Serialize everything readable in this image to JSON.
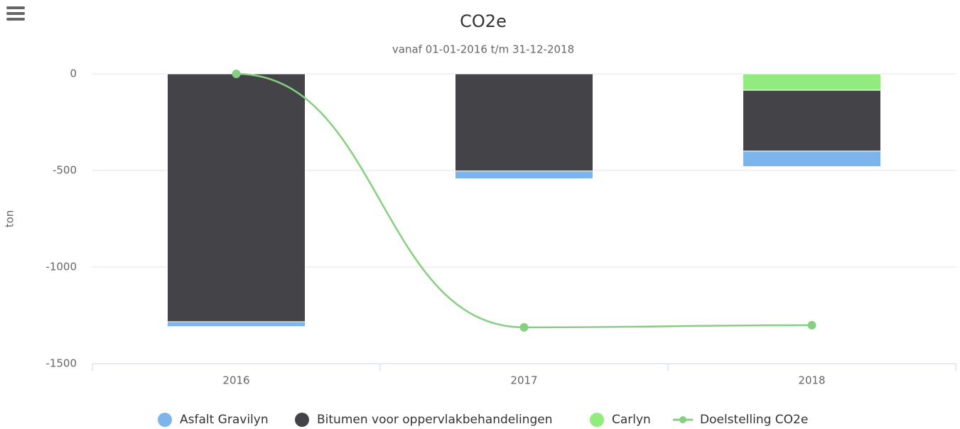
{
  "chart_data": {
    "type": "bar",
    "stacked": true,
    "title": "CO2e",
    "subtitle": "vanaf 01-01-2016 t/m 31-12-2018",
    "y_label": "ton",
    "categories": [
      "2016",
      "2017",
      "2018"
    ],
    "series": [
      {
        "name": "Asfalt Gravilyn",
        "color": "#7cb5ec",
        "values": [
          -25,
          -40,
          -80
        ]
      },
      {
        "name": "Bitumen voor oppervlakbehandelingen",
        "color": "#434348",
        "values": [
          -1283,
          -503,
          -315
        ]
      },
      {
        "name": "Carlyn",
        "color": "#90ed7d",
        "values": [
          null,
          null,
          -85
        ]
      },
      {
        "name": "Doelstelling CO2e",
        "color": "#86cf80",
        "type": "line",
        "values": [
          0,
          -1312,
          -1301
        ]
      }
    ],
    "ylim": [
      -1500,
      0
    ],
    "yticks": [
      0,
      -500,
      -1000,
      -1500
    ],
    "grid": true,
    "legend": "bottom"
  }
}
